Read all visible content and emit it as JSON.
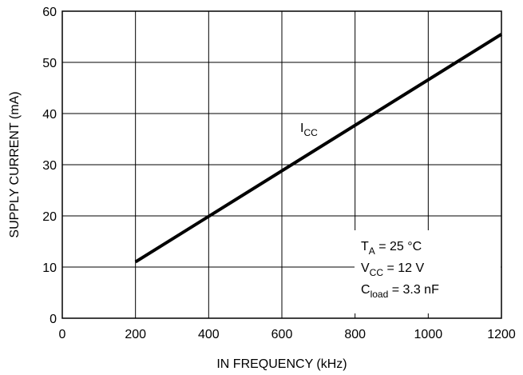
{
  "chart_data": {
    "type": "line",
    "title": "",
    "xlabel": "IN FREQUENCY (kHz)",
    "ylabel": "SUPPLY CURRENT (mA)",
    "xlim": [
      0,
      1200
    ],
    "ylim": [
      0,
      60
    ],
    "xticks": [
      0,
      200,
      400,
      600,
      800,
      1000,
      1200
    ],
    "yticks": [
      0,
      10,
      20,
      30,
      40,
      50,
      60
    ],
    "grid": true,
    "series": [
      {
        "name": "ICC",
        "label_main": "I",
        "label_sub": "CC",
        "x": [
          200,
          1200
        ],
        "y": [
          11,
          55.5
        ]
      }
    ],
    "annotations": {
      "ta": {
        "main": "T",
        "sub": "A",
        "rest": " = 25 °C"
      },
      "vcc": {
        "main": "V",
        "sub": "CC",
        "rest": " = 12 V"
      },
      "cload": {
        "main": "C",
        "sub": "load",
        "rest": " = 3.3 nF"
      }
    }
  }
}
